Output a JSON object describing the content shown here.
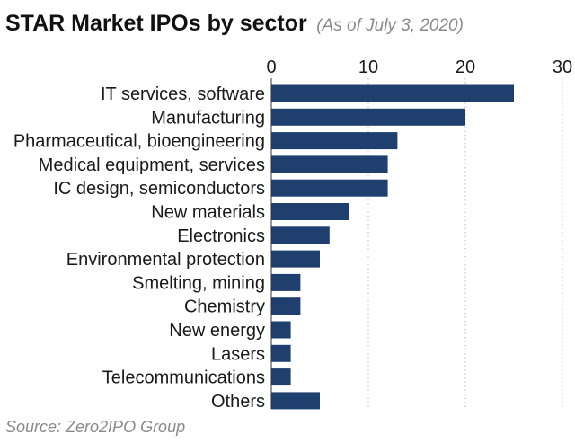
{
  "chart_data": {
    "type": "bar",
    "orientation": "horizontal",
    "title": "STAR Market IPOs by sector",
    "subtitle": "(As of July 3, 2020)",
    "categories": [
      "IT services, software",
      "Manufacturing",
      "Pharmaceutical, bioengineering",
      "Medical equipment, services",
      "IC design, semiconductors",
      "New materials",
      "Electronics",
      "Environmental protection",
      "Smelting, mining",
      "Chemistry",
      "New energy",
      "Lasers",
      "Telecommunications",
      "Others"
    ],
    "values": [
      25,
      20,
      13,
      12,
      12,
      8,
      6,
      5,
      3,
      3,
      2,
      2,
      2,
      5
    ],
    "xlim": [
      0,
      30
    ],
    "xticks": [
      "0",
      "10",
      "20",
      "30"
    ],
    "xtick_values": [
      0,
      10,
      20,
      30
    ],
    "xlabel": "",
    "ylabel": "",
    "grid": "vertical dotted",
    "bar_color": "#1f3f6e",
    "grid_color": "#bbbbbb",
    "source": "Source: Zero2IPO Group"
  }
}
